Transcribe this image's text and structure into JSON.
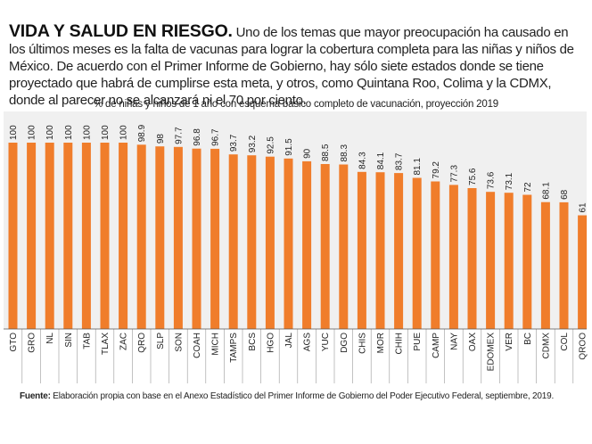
{
  "header": {
    "headline": "VIDA Y SALUD EN RIESGO.",
    "intro": "Uno de los temas que mayor preocupación ha causado en los últimos meses es la falta de vacunas para lograr la cobertura completa para las niñas y niños de México. De acuerdo con el Primer Informe de Gobierno, hay sólo siete estados donde se tiene proyectado que habrá de cumplirse esta meta, y otros, como Quintana Roo, Colima y la CDMX, donde al parecer no se alcanzará ni el 70 por ciento."
  },
  "chart_data": {
    "type": "bar",
    "title": "% de niñas y niños de 1 año con esquema básico completo de vacunación, proyección 2019",
    "categories": [
      "GTO",
      "GRO",
      "NL",
      "SIN",
      "TAB",
      "TLAX",
      "ZAC",
      "QRO",
      "SLP",
      "SON",
      "COAH",
      "MICH",
      "TAMPS",
      "BCS",
      "HGO",
      "JAL",
      "AGS",
      "YUC",
      "DGO",
      "CHIS",
      "MOR",
      "CHIH",
      "PUE",
      "CAMP",
      "NAY",
      "OAX",
      "EDOMEX",
      "VER",
      "BC",
      "CDMX",
      "COL",
      "QROO"
    ],
    "values": [
      100,
      100,
      100,
      100,
      100,
      100,
      100,
      98.9,
      98,
      97.7,
      96.8,
      96.7,
      93.7,
      93.2,
      92.5,
      91.5,
      90,
      88.5,
      88.3,
      84.3,
      84.1,
      83.7,
      81.1,
      79.2,
      77.3,
      75.6,
      73.6,
      73.1,
      72,
      68.1,
      68,
      61
    ],
    "labels": [
      "100",
      "100",
      "100",
      "100",
      "100",
      "100",
      "100",
      "98.9",
      "98",
      "97.7",
      "96.8",
      "96.7",
      "93.7",
      "93.2",
      "92.5",
      "91.5",
      "90",
      "88.5",
      "88.3",
      "84.3",
      "84.1",
      "83.7",
      "81.1",
      "79.2",
      "77.3",
      "75.6",
      "73.6",
      "73.1",
      "72",
      "68.1",
      "68",
      "61"
    ],
    "ylim": [
      0,
      100
    ],
    "bar_color": "#f07d2b",
    "grid": false,
    "legend": "none"
  },
  "footer": {
    "source_label": "Fuente:",
    "source_text": " Elaboración propia con base en el Anexo Estadístico del Primer Informe de Gobierno del Poder Ejecutivo Federal, septiembre, 2019."
  }
}
